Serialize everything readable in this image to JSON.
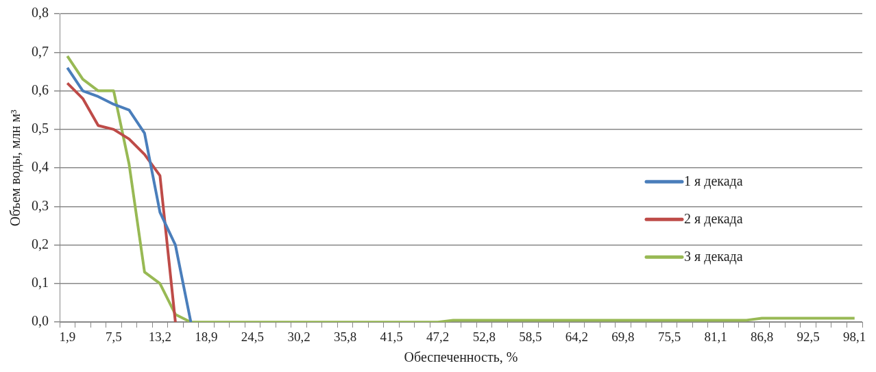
{
  "chart_data": {
    "type": "line",
    "xlabel": "Обеспеченность, %",
    "ylabel": "Объем воды, млн м³",
    "categories": [
      "1,9",
      null,
      null,
      "7,5",
      null,
      null,
      "13,2",
      null,
      null,
      "18,9",
      null,
      null,
      "24,5",
      null,
      null,
      "30,2",
      null,
      null,
      "35,8",
      null,
      null,
      "41,5",
      null,
      null,
      "47,2",
      null,
      null,
      "52,8",
      null,
      null,
      "58,5",
      null,
      null,
      "64,2",
      null,
      null,
      "69,8",
      null,
      null,
      "75,5",
      null,
      null,
      "81,1",
      null,
      null,
      "86,8",
      null,
      null,
      "92,5",
      null,
      null,
      "98,1"
    ],
    "series": [
      {
        "name": "1 я декада",
        "color": "#4a7ebb",
        "values": [
          0.66,
          0.6,
          0.585,
          0.565,
          0.55,
          0.49,
          0.285,
          0.2,
          0,
          null,
          null,
          null,
          null,
          null,
          null,
          null,
          null,
          null,
          null,
          null,
          null,
          null,
          null,
          null,
          null,
          null,
          null,
          null,
          null,
          null,
          null,
          null,
          null,
          null,
          null,
          null,
          null,
          null,
          null,
          null,
          null,
          null,
          null,
          null,
          null,
          null,
          null,
          null,
          null,
          null,
          null,
          null
        ]
      },
      {
        "name": "2 я декада",
        "color": "#be4b48",
        "values": [
          0.62,
          0.58,
          0.51,
          0.5,
          0.475,
          0.435,
          0.38,
          0,
          null,
          null,
          null,
          null,
          null,
          null,
          null,
          null,
          null,
          null,
          null,
          null,
          null,
          null,
          null,
          null,
          null,
          null,
          null,
          null,
          null,
          null,
          null,
          null,
          null,
          null,
          null,
          null,
          null,
          null,
          null,
          null,
          null,
          null,
          null,
          null,
          null,
          null,
          null,
          null,
          null,
          null,
          null,
          null
        ]
      },
      {
        "name": "3 я декада",
        "color": "#98b954",
        "values": [
          0.69,
          0.63,
          0.6,
          0.6,
          0.41,
          0.13,
          0.1,
          0.02,
          0,
          0,
          0,
          0,
          0,
          0,
          0,
          0,
          0,
          0,
          0,
          0,
          0,
          0,
          0,
          0,
          0,
          0.005,
          0.005,
          0.005,
          0.005,
          0.005,
          0.005,
          0.005,
          0.005,
          0.005,
          0.005,
          0.005,
          0.005,
          0.005,
          0.005,
          0.005,
          0.005,
          0.005,
          0.005,
          0.005,
          0.005,
          0.01,
          0.01,
          0.01,
          0.01,
          0.01,
          0.01,
          0.01
        ]
      }
    ],
    "ylim": [
      0,
      0.8
    ],
    "yticks": [
      {
        "value": 0,
        "label": "0,0"
      },
      {
        "value": 0.1,
        "label": "0,1"
      },
      {
        "value": 0.2,
        "label": "0,2"
      },
      {
        "value": 0.3,
        "label": "0,3"
      },
      {
        "value": 0.4,
        "label": "0,4"
      },
      {
        "value": 0.5,
        "label": "0,5"
      },
      {
        "value": 0.6,
        "label": "0,6"
      },
      {
        "value": 0.7,
        "label": "0,7"
      },
      {
        "value": 0.8,
        "label": "0,8"
      }
    ],
    "grid": "y",
    "legend": "right",
    "marker": "none",
    "line_style": "solid"
  }
}
